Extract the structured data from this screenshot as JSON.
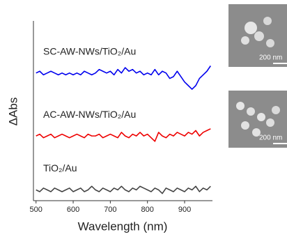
{
  "chart_data": {
    "type": "line",
    "x_label": "Wavelength (nm)",
    "y_label": "ΔAbs",
    "x": [
      500,
      510,
      520,
      530,
      540,
      550,
      560,
      570,
      580,
      590,
      600,
      610,
      620,
      630,
      640,
      650,
      660,
      670,
      680,
      690,
      700,
      710,
      720,
      730,
      740,
      750,
      760,
      770,
      780,
      790,
      800,
      810,
      820,
      830,
      840,
      850,
      860,
      870,
      880,
      890,
      900,
      910,
      920,
      930,
      940,
      950,
      960,
      970
    ],
    "series": [
      {
        "name": "SC-AW-NWs/TiO₂/Au",
        "color": "#0000ee",
        "values": [
          7.1,
          7.2,
          7.0,
          7.1,
          7.2,
          7.1,
          7.0,
          7.1,
          7.0,
          7.1,
          7.0,
          7.1,
          7.0,
          7.2,
          7.1,
          7.0,
          7.1,
          7.3,
          7.2,
          7.1,
          7.2,
          7.0,
          7.3,
          7.1,
          7.4,
          7.2,
          7.3,
          7.1,
          7.2,
          7.0,
          7.1,
          7.0,
          7.3,
          7.0,
          7.2,
          7.1,
          6.8,
          6.9,
          7.2,
          6.9,
          6.6,
          6.4,
          6.2,
          6.4,
          6.8,
          7.0,
          7.2,
          7.5
        ]
      },
      {
        "name": "AC-AW-NWs/TiO₂/Au",
        "color": "#ee0000",
        "values": [
          3.6,
          3.7,
          3.5,
          3.6,
          3.7,
          3.5,
          3.6,
          3.7,
          3.6,
          3.5,
          3.6,
          3.7,
          3.6,
          3.5,
          3.7,
          3.6,
          3.6,
          3.7,
          3.5,
          3.6,
          3.7,
          3.6,
          3.5,
          3.8,
          3.6,
          3.5,
          3.7,
          3.6,
          3.8,
          3.6,
          3.7,
          3.5,
          3.3,
          3.8,
          3.6,
          3.5,
          3.7,
          3.6,
          3.8,
          3.7,
          3.6,
          3.8,
          3.7,
          3.9,
          3.6,
          3.8,
          3.9,
          4.0
        ]
      },
      {
        "name": "TiO₂/Au",
        "color": "#444444",
        "values": [
          0.6,
          0.5,
          0.7,
          0.6,
          0.5,
          0.7,
          0.6,
          0.5,
          0.6,
          0.7,
          0.5,
          0.6,
          0.7,
          0.5,
          0.6,
          0.8,
          0.6,
          0.5,
          0.7,
          0.6,
          0.5,
          0.7,
          0.6,
          0.8,
          0.6,
          0.5,
          0.7,
          0.6,
          0.8,
          0.7,
          0.6,
          0.5,
          0.7,
          0.6,
          0.4,
          0.7,
          0.6,
          0.5,
          0.7,
          0.6,
          0.5,
          0.7,
          0.6,
          0.8,
          0.5,
          0.7,
          0.6,
          0.8
        ]
      }
    ],
    "xlim": [
      493,
      975
    ],
    "xticks": [
      500,
      600,
      700,
      800,
      900
    ],
    "ylim": [
      0,
      10
    ],
    "annotations": [
      "200 nm",
      "200 nm"
    ]
  }
}
